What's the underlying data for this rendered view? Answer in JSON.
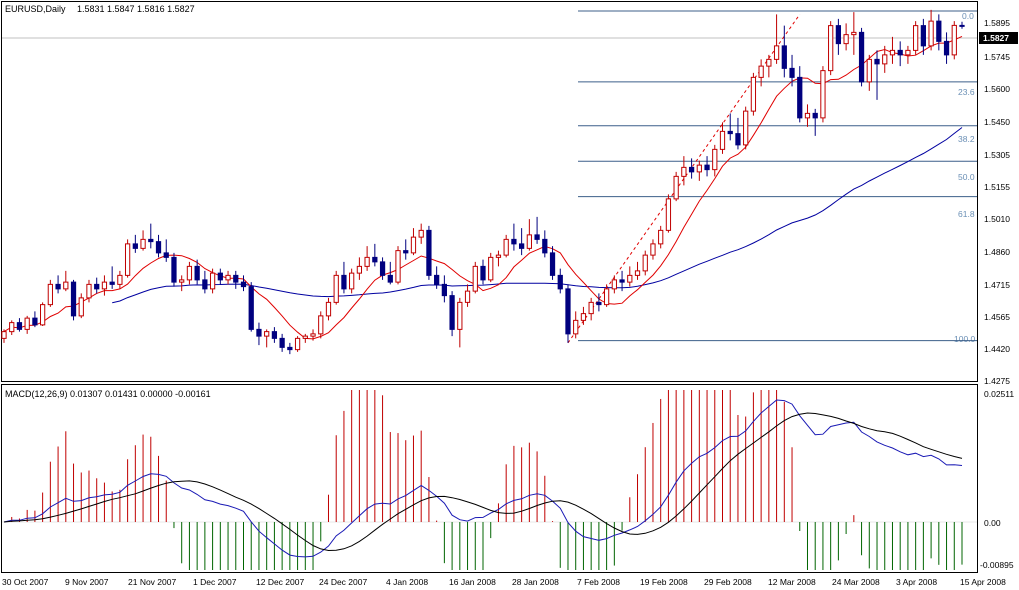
{
  "colors": {
    "bull": "#c00000",
    "bear": "#00007f",
    "fast_ma": "#e00000",
    "slow_ma": "#0000a0",
    "fib": "#3c5f8a",
    "grid": "#a8b0c0",
    "macd_line": "#1a1ab5",
    "signal_line": "#000000",
    "hist_pos": "#c00000",
    "hist_neg": "#006400",
    "last_price_bg": "#000000"
  },
  "header": {
    "symbol": "EURUSD,Daily",
    "ohlc": "1.5831 1.5847 1.5816 1.5827"
  },
  "price_axis": {
    "ticks": [
      "1.5895",
      "1.5745",
      "1.5600",
      "1.5450",
      "1.5305",
      "1.5155",
      "1.5010",
      "1.4860",
      "1.4715",
      "1.4565",
      "1.4420",
      "1.4275"
    ],
    "current": "1.5827"
  },
  "macd": {
    "title": "MACD(12,26,9) 0.01307 0.01431 0.00000 -0.00161",
    "ticks": [
      "0.02511",
      "0.00",
      "-0.00895"
    ]
  },
  "x_axis": {
    "labels": [
      "30 Oct 2007",
      "9 Nov 2007",
      "21 Nov 2007",
      "1 Dec 2007",
      "12 Dec 2007",
      "24 Dec 2007",
      "4 Jan 2008",
      "16 Jan 2008",
      "28 Jan 2008",
      "7 Feb 2008",
      "19 Feb 2008",
      "29 Feb 2008",
      "12 Mar 2008",
      "24 Mar 2008",
      "3 Apr 2008",
      "15 Apr 2008"
    ]
  },
  "fibonacci": {
    "levels": [
      "0.0",
      "23.6",
      "38.2",
      "50.0",
      "61.8",
      "100.0"
    ]
  },
  "chart_data": {
    "type": "candlestick",
    "symbol": "EURUSD",
    "timeframe": "Daily",
    "y_range": [
      1.4255,
      1.5935
    ],
    "fib_prices": [
      1.5895,
      1.558,
      1.5385,
      1.5227,
      1.507,
      1.443
    ],
    "candles": [
      [
        1.444,
        1.448,
        1.442,
        1.447
      ],
      [
        1.447,
        1.452,
        1.4455,
        1.451
      ],
      [
        1.451,
        1.453,
        1.447,
        1.448
      ],
      [
        1.448,
        1.454,
        1.446,
        1.453
      ],
      [
        1.453,
        1.456,
        1.449,
        1.45
      ],
      [
        1.45,
        1.46,
        1.4495,
        1.459
      ],
      [
        1.459,
        1.47,
        1.458,
        1.468
      ],
      [
        1.468,
        1.472,
        1.464,
        1.466
      ],
      [
        1.466,
        1.474,
        1.465,
        1.469
      ],
      [
        1.469,
        1.47,
        1.452,
        1.454
      ],
      [
        1.454,
        1.464,
        1.453,
        1.462
      ],
      [
        1.462,
        1.47,
        1.46,
        1.468
      ],
      [
        1.468,
        1.471,
        1.464,
        1.466
      ],
      [
        1.466,
        1.472,
        1.463,
        1.469
      ],
      [
        1.469,
        1.476,
        1.466,
        1.468
      ],
      [
        1.468,
        1.474,
        1.466,
        1.472
      ],
      [
        1.472,
        1.488,
        1.471,
        1.486
      ],
      [
        1.486,
        1.49,
        1.482,
        1.484
      ],
      [
        1.484,
        1.492,
        1.483,
        1.488
      ],
      [
        1.488,
        1.495,
        1.484,
        1.487
      ],
      [
        1.487,
        1.49,
        1.48,
        1.482
      ],
      [
        1.482,
        1.488,
        1.478,
        1.48
      ],
      [
        1.48,
        1.482,
        1.467,
        1.469
      ],
      [
        1.469,
        1.472,
        1.465,
        1.47
      ],
      [
        1.47,
        1.478,
        1.468,
        1.476
      ],
      [
        1.476,
        1.479,
        1.468,
        1.47
      ],
      [
        1.47,
        1.474,
        1.464,
        1.466
      ],
      [
        1.466,
        1.475,
        1.464,
        1.473
      ],
      [
        1.473,
        1.475,
        1.468,
        1.47
      ],
      [
        1.47,
        1.474,
        1.468,
        1.472
      ],
      [
        1.472,
        1.474,
        1.466,
        1.469
      ],
      [
        1.469,
        1.472,
        1.465,
        1.467
      ],
      [
        1.467,
        1.469,
        1.447,
        1.448
      ],
      [
        1.448,
        1.451,
        1.441,
        1.445
      ],
      [
        1.445,
        1.448,
        1.44,
        1.447
      ],
      [
        1.447,
        1.449,
        1.442,
        1.444
      ],
      [
        1.444,
        1.446,
        1.438,
        1.44
      ],
      [
        1.44,
        1.442,
        1.437,
        1.439
      ],
      [
        1.439,
        1.445,
        1.438,
        1.444
      ],
      [
        1.444,
        1.446,
        1.442,
        1.445
      ],
      [
        1.445,
        1.448,
        1.443,
        1.446
      ],
      [
        1.446,
        1.456,
        1.444,
        1.454
      ],
      [
        1.454,
        1.462,
        1.452,
        1.46
      ],
      [
        1.46,
        1.474,
        1.459,
        1.472
      ],
      [
        1.472,
        1.478,
        1.464,
        1.466
      ],
      [
        1.466,
        1.475,
        1.464,
        1.473
      ],
      [
        1.473,
        1.48,
        1.47,
        1.476
      ],
      [
        1.476,
        1.485,
        1.474,
        1.48
      ],
      [
        1.48,
        1.486,
        1.476,
        1.478
      ],
      [
        1.478,
        1.48,
        1.47,
        1.472
      ],
      [
        1.472,
        1.478,
        1.468,
        1.469
      ],
      [
        1.469,
        1.485,
        1.468,
        1.483
      ],
      [
        1.483,
        1.488,
        1.479,
        1.482
      ],
      [
        1.482,
        1.493,
        1.481,
        1.489
      ],
      [
        1.489,
        1.495,
        1.486,
        1.492
      ],
      [
        1.492,
        1.494,
        1.47,
        1.472
      ],
      [
        1.472,
        1.476,
        1.466,
        1.468
      ],
      [
        1.468,
        1.472,
        1.46,
        1.463
      ],
      [
        1.463,
        1.465,
        1.445,
        1.448
      ],
      [
        1.448,
        1.462,
        1.44,
        1.46
      ],
      [
        1.46,
        1.468,
        1.458,
        1.465
      ],
      [
        1.465,
        1.478,
        1.464,
        1.476
      ],
      [
        1.476,
        1.479,
        1.468,
        1.47
      ],
      [
        1.47,
        1.482,
        1.469,
        1.48
      ],
      [
        1.48,
        1.483,
        1.476,
        1.481
      ],
      [
        1.481,
        1.49,
        1.48,
        1.488
      ],
      [
        1.488,
        1.495,
        1.483,
        1.486
      ],
      [
        1.486,
        1.493,
        1.481,
        1.484
      ],
      [
        1.484,
        1.497,
        1.483,
        1.49
      ],
      [
        1.49,
        1.498,
        1.486,
        1.488
      ],
      [
        1.488,
        1.492,
        1.48,
        1.482
      ],
      [
        1.482,
        1.485,
        1.47,
        1.472
      ],
      [
        1.472,
        1.475,
        1.464,
        1.466
      ],
      [
        1.466,
        1.468,
        1.442,
        1.446
      ],
      [
        1.446,
        1.456,
        1.444,
        1.452
      ],
      [
        1.452,
        1.458,
        1.45,
        1.455
      ],
      [
        1.455,
        1.462,
        1.452,
        1.46
      ],
      [
        1.46,
        1.464,
        1.456,
        1.459
      ],
      [
        1.459,
        1.468,
        1.458,
        1.466
      ],
      [
        1.466,
        1.472,
        1.464,
        1.47
      ],
      [
        1.47,
        1.474,
        1.465,
        1.469
      ],
      [
        1.469,
        1.476,
        1.467,
        1.472
      ],
      [
        1.472,
        1.478,
        1.47,
        1.474
      ],
      [
        1.474,
        1.483,
        1.472,
        1.481
      ],
      [
        1.481,
        1.488,
        1.479,
        1.486
      ],
      [
        1.486,
        1.494,
        1.484,
        1.492
      ],
      [
        1.492,
        1.508,
        1.491,
        1.506
      ],
      [
        1.506,
        1.518,
        1.505,
        1.516
      ],
      [
        1.516,
        1.525,
        1.512,
        1.52
      ],
      [
        1.52,
        1.524,
        1.515,
        1.518
      ],
      [
        1.518,
        1.523,
        1.514,
        1.521
      ],
      [
        1.521,
        1.525,
        1.516,
        1.519
      ],
      [
        1.519,
        1.53,
        1.516,
        1.528
      ],
      [
        1.528,
        1.54,
        1.526,
        1.536
      ],
      [
        1.536,
        1.544,
        1.532,
        1.535
      ],
      [
        1.535,
        1.542,
        1.528,
        1.53
      ],
      [
        1.53,
        1.547,
        1.528,
        1.545
      ],
      [
        1.545,
        1.562,
        1.543,
        1.56
      ],
      [
        1.56,
        1.568,
        1.556,
        1.565
      ],
      [
        1.565,
        1.57,
        1.56,
        1.568
      ],
      [
        1.568,
        1.588,
        1.566,
        1.574
      ],
      [
        1.574,
        1.583,
        1.56,
        1.564
      ],
      [
        1.564,
        1.57,
        1.556,
        1.56
      ],
      [
        1.56,
        1.565,
        1.54,
        1.542
      ],
      [
        1.542,
        1.548,
        1.538,
        1.544
      ],
      [
        1.544,
        1.546,
        1.534,
        1.542
      ],
      [
        1.542,
        1.565,
        1.54,
        1.563
      ],
      [
        1.563,
        1.585,
        1.561,
        1.583
      ],
      [
        1.583,
        1.586,
        1.57,
        1.575
      ],
      [
        1.575,
        1.584,
        1.572,
        1.579
      ],
      [
        1.579,
        1.589,
        1.57,
        1.58
      ],
      [
        1.58,
        1.582,
        1.556,
        1.558
      ],
      [
        1.558,
        1.57,
        1.554,
        1.568
      ],
      [
        1.568,
        1.572,
        1.55,
        1.566
      ],
      [
        1.566,
        1.574,
        1.562,
        1.57
      ],
      [
        1.57,
        1.578,
        1.566,
        1.572
      ],
      [
        1.572,
        1.576,
        1.565,
        1.57
      ],
      [
        1.57,
        1.574,
        1.566,
        1.572
      ],
      [
        1.572,
        1.585,
        1.57,
        1.583
      ],
      [
        1.583,
        1.586,
        1.57,
        1.574
      ],
      [
        1.574,
        1.59,
        1.572,
        1.585
      ],
      [
        1.585,
        1.588,
        1.572,
        1.576
      ],
      [
        1.576,
        1.58,
        1.566,
        1.57
      ],
      [
        1.57,
        1.585,
        1.568,
        1.5831
      ],
      [
        1.5831,
        1.5847,
        1.5816,
        1.5827
      ]
    ]
  }
}
